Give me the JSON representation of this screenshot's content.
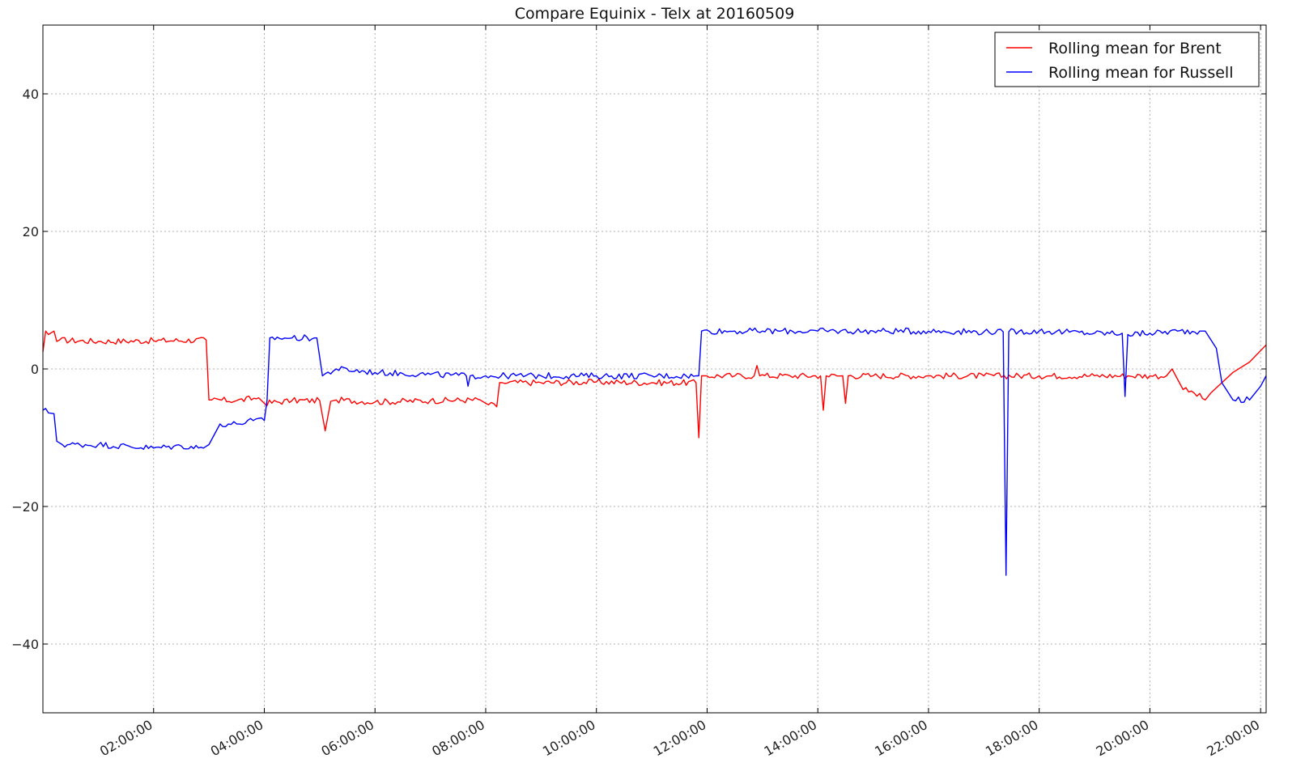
{
  "chart_data": {
    "type": "line",
    "title": "Compare Equinix - Telx at 20160509",
    "xlabel": "",
    "ylabel": "",
    "x_unit": "hours",
    "xlim": [
      0.0,
      22.1
    ],
    "ylim": [
      -50,
      50
    ],
    "y_ticks": [
      -40,
      -20,
      0,
      20,
      40
    ],
    "x_ticks": [
      2,
      4,
      6,
      8,
      10,
      12,
      14,
      16,
      18,
      20,
      22
    ],
    "x_tick_labels": [
      "02:00:00",
      "04:00:00",
      "06:00:00",
      "08:00:00",
      "10:00:00",
      "12:00:00",
      "14:00:00",
      "16:00:00",
      "18:00:00",
      "20:00:00",
      "22:00:00"
    ],
    "grid": true,
    "legend_position": "top-right",
    "series": [
      {
        "name": "Rolling mean for Brent",
        "color": "#ff0000",
        "x": [
          0.0,
          0.05,
          0.1,
          0.2,
          0.25,
          0.3,
          1.0,
          2.0,
          2.95,
          3.0,
          3.05,
          3.5,
          3.9,
          4.0,
          4.5,
          5.0,
          5.1,
          5.2,
          5.3,
          6.0,
          7.0,
          7.9,
          8.0,
          8.2,
          8.25,
          8.3,
          9.0,
          10.0,
          11.0,
          11.8,
          11.85,
          11.9,
          11.95,
          12.5,
          12.85,
          12.9,
          12.95,
          13.5,
          14.05,
          14.1,
          14.15,
          14.45,
          14.5,
          14.55,
          15.0,
          16.0,
          17.0,
          18.0,
          19.0,
          19.6,
          20.0,
          20.3,
          20.4,
          20.6,
          20.8,
          21.0,
          21.1,
          21.3,
          21.5,
          21.8,
          22.1
        ],
        "y": [
          2.5,
          5.5,
          5.0,
          5.5,
          4.0,
          4.2,
          4.0,
          4.1,
          4.2,
          -4.5,
          -4.5,
          -4.6,
          -4.2,
          -5.0,
          -4.6,
          -4.6,
          -9.0,
          -4.7,
          -4.5,
          -4.8,
          -4.6,
          -4.5,
          -5.0,
          -5.5,
          -2.0,
          -2.0,
          -2.0,
          -1.9,
          -2.0,
          -2.0,
          -10.0,
          -1.0,
          -1.0,
          -1.0,
          -1.0,
          0.5,
          -1.0,
          -1.0,
          -1.0,
          -6.0,
          -1.0,
          -1.0,
          -5.0,
          -1.0,
          -1.0,
          -1.0,
          -1.0,
          -1.0,
          -1.0,
          -1.0,
          -1.0,
          -1.0,
          0.0,
          -3.0,
          -3.5,
          -4.5,
          -3.5,
          -2.0,
          -0.5,
          1.0,
          3.5
        ]
      },
      {
        "name": "Rolling mean for Russell",
        "color": "#0000ff",
        "x": [
          0.0,
          0.2,
          0.25,
          0.35,
          1.0,
          2.0,
          2.5,
          2.9,
          3.0,
          3.2,
          3.5,
          3.8,
          4.0,
          4.05,
          4.1,
          4.5,
          4.95,
          5.05,
          5.3,
          6.0,
          7.0,
          7.65,
          7.68,
          7.72,
          8.0,
          9.0,
          10.0,
          11.0,
          11.8,
          11.85,
          11.9,
          12.5,
          13.0,
          14.0,
          15.0,
          16.0,
          17.0,
          17.35,
          17.4,
          17.45,
          18.0,
          19.0,
          19.5,
          19.55,
          19.6,
          20.0,
          20.5,
          20.9,
          21.0,
          21.2,
          21.3,
          21.5,
          21.8,
          22.0,
          22.1
        ],
        "y": [
          -6.0,
          -6.5,
          -10.5,
          -11.0,
          -11.0,
          -11.5,
          -11.2,
          -11.5,
          -11.0,
          -8.0,
          -8.0,
          -7.5,
          -7.5,
          -4.5,
          4.5,
          4.5,
          4.5,
          -1.0,
          0.0,
          -0.5,
          -0.8,
          -1.0,
          -2.5,
          -1.0,
          -1.0,
          -1.0,
          -1.0,
          -1.0,
          -1.0,
          -1.0,
          5.5,
          5.5,
          5.5,
          5.5,
          5.5,
          5.5,
          5.4,
          5.4,
          -30.0,
          5.4,
          5.5,
          5.2,
          5.2,
          -4.0,
          5.0,
          5.2,
          5.5,
          5.5,
          5.5,
          3.0,
          -2.0,
          -4.5,
          -4.5,
          -2.5,
          -1.0
        ]
      }
    ]
  }
}
